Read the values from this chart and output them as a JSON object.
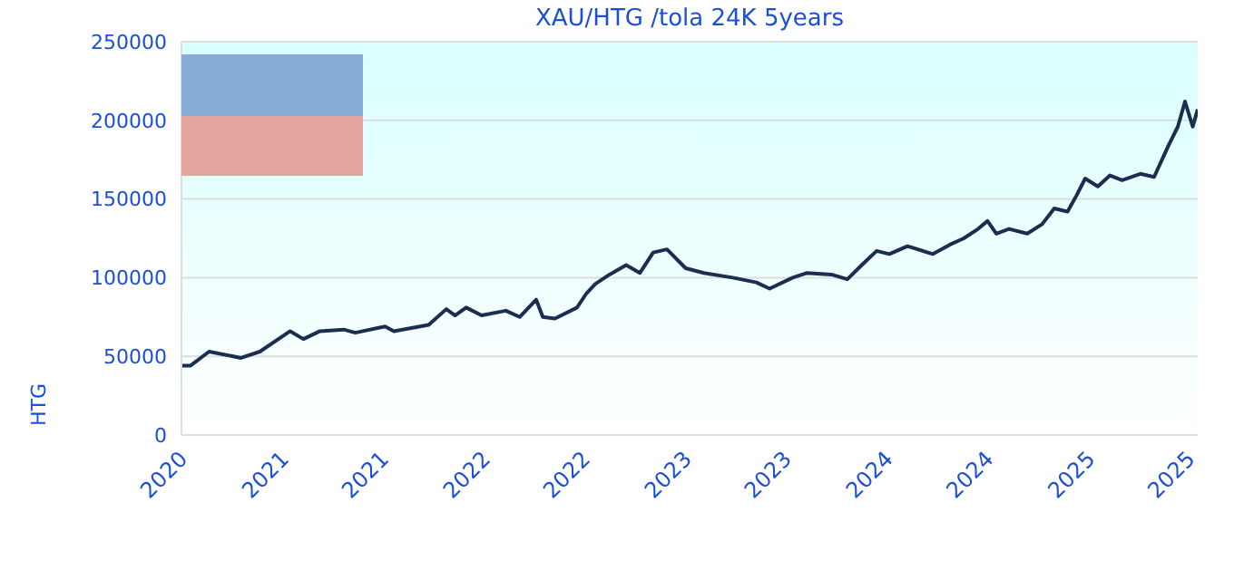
{
  "chart_data": {
    "type": "line",
    "title": "XAU/HTG /tola 24K 5years",
    "ylabel": "HTG",
    "x": [
      "2020-07-01",
      "2020-07-17",
      "2020-08-20",
      "2020-10-17",
      "2020-11-20",
      "2021-01-14",
      "2021-02-07",
      "2021-03-09",
      "2021-04-21",
      "2021-05-12",
      "2021-07-05",
      "2021-07-21",
      "2021-09-22",
      "2021-10-24",
      "2021-11-09",
      "2021-11-29",
      "2021-12-27",
      "2022-02-09",
      "2022-03-06",
      "2022-04-05",
      "2022-04-17",
      "2022-05-09",
      "2022-06-18",
      "2022-07-05",
      "2022-07-21",
      "2022-08-16",
      "2022-09-15",
      "2022-10-10",
      "2022-11-03",
      "2022-11-28",
      "2023-01-01",
      "2023-02-03",
      "2023-03-27",
      "2023-05-09",
      "2023-06-02",
      "2023-07-14",
      "2023-08-09",
      "2023-09-22",
      "2023-10-21",
      "2023-11-16",
      "2023-12-13",
      "2024-01-05",
      "2024-02-07",
      "2024-03-24",
      "2024-04-24",
      "2024-05-19",
      "2024-06-14",
      "2024-07-01",
      "2024-07-17",
      "2024-08-09",
      "2024-09-11",
      "2024-10-08",
      "2024-10-30",
      "2024-11-23",
      "2024-12-09",
      "2024-12-25",
      "2025-01-17",
      "2025-02-08",
      "2025-03-02",
      "2025-04-04",
      "2025-04-29",
      "2025-05-25",
      "2025-06-11",
      "2025-06-24",
      "2025-07-08",
      "2025-07-17"
    ],
    "series": [
      {
        "color": "#1a2e50",
        "values": [
          44000,
          44000,
          53000,
          49000,
          53000,
          66000,
          61000,
          66000,
          67000,
          65000,
          69000,
          66000,
          70000,
          80000,
          76000,
          81000,
          76000,
          79000,
          75000,
          86000,
          75000,
          74000,
          81000,
          90000,
          96000,
          102000,
          108000,
          103000,
          116000,
          118000,
          106000,
          103000,
          100000,
          97000,
          93000,
          100000,
          103000,
          102000,
          99000,
          108000,
          117000,
          115000,
          120000,
          115000,
          121000,
          125000,
          131000,
          136000,
          128000,
          131000,
          128000,
          134000,
          144000,
          142000,
          152000,
          163000,
          158000,
          165000,
          162000,
          166000,
          164000,
          184000,
          196000,
          212000,
          196000,
          207000
        ]
      }
    ],
    "xlim": [
      "2020-07-01",
      "2025-07-17"
    ],
    "xticks": [
      {
        "value": "2020-07-01",
        "label": "2020"
      },
      {
        "value": "2021-01-01",
        "label": "2021"
      },
      {
        "value": "2021-07-01",
        "label": "2021"
      },
      {
        "value": "2022-01-01",
        "label": "2022"
      },
      {
        "value": "2022-07-01",
        "label": "2022"
      },
      {
        "value": "2023-01-01",
        "label": "2023"
      },
      {
        "value": "2023-07-01",
        "label": "2023"
      },
      {
        "value": "2024-01-01",
        "label": "2024"
      },
      {
        "value": "2024-07-01",
        "label": "2024"
      },
      {
        "value": "2025-01-01",
        "label": "2025"
      },
      {
        "value": "2025-07-01",
        "label": "2025"
      }
    ],
    "ylim": [
      0,
      250000
    ],
    "yticks": [
      0,
      50000,
      100000,
      150000,
      200000,
      250000
    ],
    "grid": "y",
    "marker": "none",
    "line_style": "solid"
  }
}
